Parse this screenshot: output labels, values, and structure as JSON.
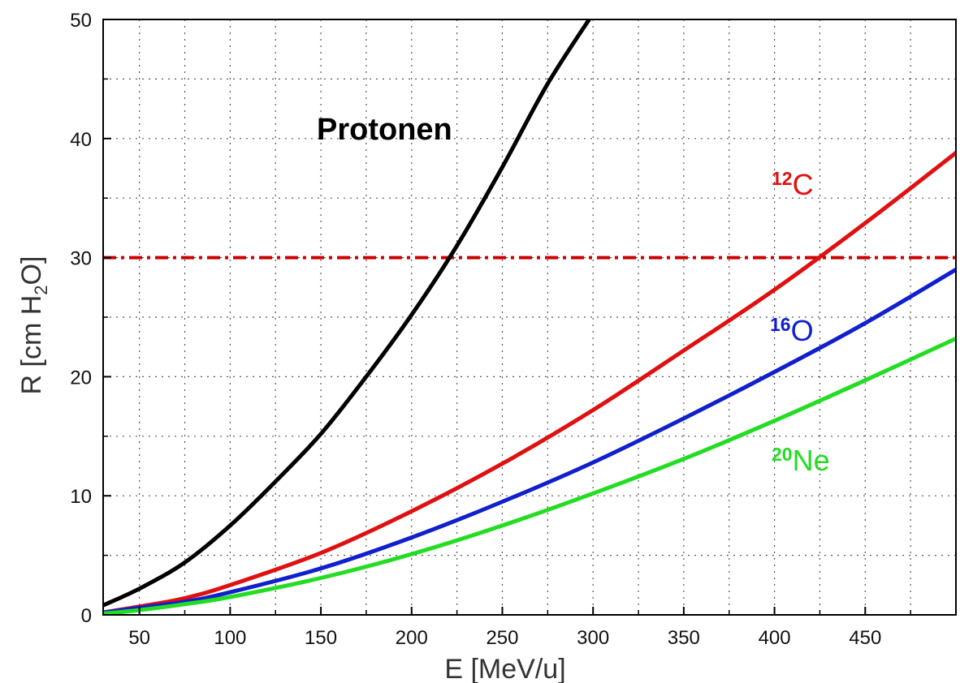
{
  "chart_data": {
    "type": "line",
    "xlabel": "E  [MeV/u]",
    "ylabel": {
      "main": "R  [cm  H",
      "sub": "2",
      "tail": "O]"
    },
    "xlim": [
      30,
      500
    ],
    "ylim": [
      0,
      50
    ],
    "x_ticks": [
      50,
      100,
      150,
      200,
      250,
      300,
      350,
      400,
      450
    ],
    "y_ticks": [
      0,
      10,
      20,
      30,
      40,
      50
    ],
    "x_tick_labels": [
      "50",
      "100",
      "150",
      "200",
      "250",
      "300",
      "350",
      "400",
      "450"
    ],
    "y_tick_labels": [
      "0",
      "10",
      "20",
      "30",
      "40",
      "50"
    ],
    "x_minor_grid": [
      75,
      125,
      175,
      225,
      275,
      325,
      375,
      425,
      475
    ],
    "y_minor_grid": [
      5,
      15,
      25,
      35,
      45
    ],
    "grid": true,
    "reference_line": {
      "y": 30,
      "color": "#cc0000",
      "style": "dash-dot"
    },
    "series": [
      {
        "name": "Protonen",
        "label_sup": "",
        "label_main": "Protonen",
        "color": "#000000",
        "x": [
          30,
          50,
          75,
          100,
          125,
          150,
          175,
          200,
          225,
          250,
          275,
          300
        ],
        "y": [
          0.8,
          2.2,
          4.4,
          7.5,
          11.2,
          15.2,
          20.0,
          25.2,
          31.0,
          37.6,
          44.6,
          50.5
        ]
      },
      {
        "name": "12C",
        "label_sup": "12",
        "label_main": "C",
        "color": "#e01010",
        "x": [
          30,
          50,
          75,
          100,
          150,
          200,
          250,
          300,
          350,
          400,
          450,
          500
        ],
        "y": [
          0.2,
          0.7,
          1.4,
          2.5,
          5.2,
          8.7,
          12.7,
          17.2,
          22.2,
          27.3,
          32.9,
          38.8
        ]
      },
      {
        "name": "16O",
        "label_sup": "16",
        "label_main": "O",
        "color": "#1020cc",
        "x": [
          30,
          50,
          75,
          100,
          150,
          200,
          250,
          300,
          350,
          400,
          450,
          500
        ],
        "y": [
          0.2,
          0.6,
          1.1,
          1.9,
          3.9,
          6.5,
          9.5,
          12.8,
          16.5,
          20.4,
          24.5,
          29.0
        ]
      },
      {
        "name": "20Ne",
        "label_sup": "20",
        "label_main": "Ne",
        "color": "#22dd22",
        "x": [
          30,
          50,
          75,
          100,
          150,
          200,
          250,
          300,
          350,
          400,
          450,
          500
        ],
        "y": [
          0.1,
          0.4,
          0.9,
          1.5,
          3.1,
          5.1,
          7.5,
          10.2,
          13.1,
          16.3,
          19.7,
          23.2
        ]
      }
    ]
  }
}
